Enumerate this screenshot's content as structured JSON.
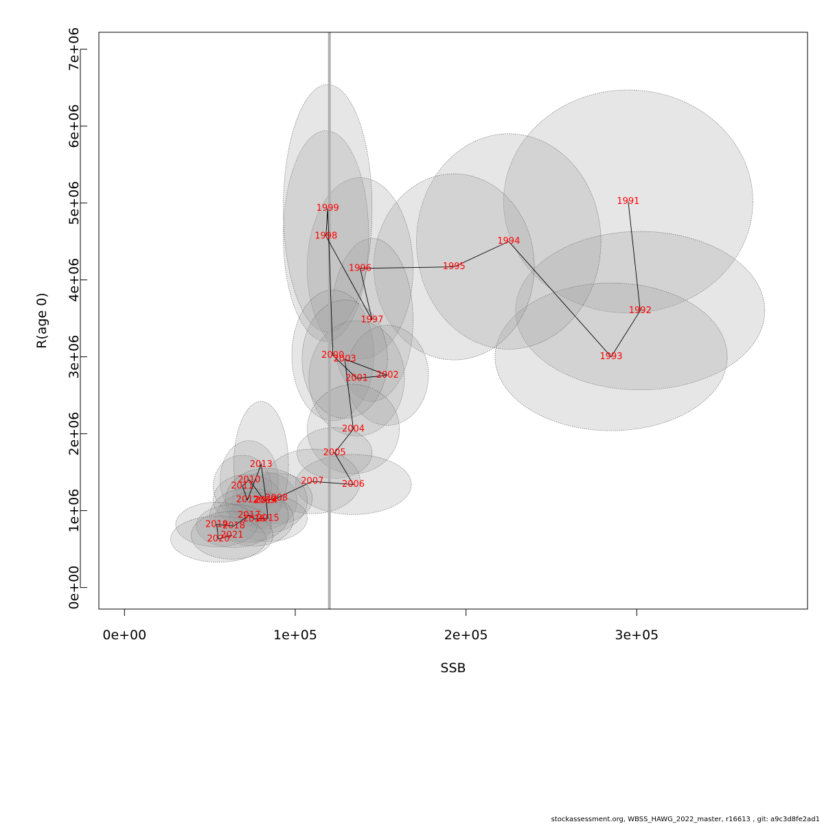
{
  "chart_data": {
    "type": "scatter",
    "xlabel": "SSB",
    "ylabel": "R(age 0)",
    "xlim": [
      -15000,
      400000
    ],
    "ylim": [
      -280000,
      7220000
    ],
    "x_ticks": [
      0,
      100000,
      200000,
      300000
    ],
    "x_tick_labels": [
      "0e+00",
      "1e+05",
      "2e+05",
      "3e+05"
    ],
    "y_ticks": [
      0,
      1000000,
      2000000,
      3000000,
      4000000,
      5000000,
      6000000,
      7000000
    ],
    "y_tick_labels": [
      "0e+00",
      "1e+06",
      "2e+06",
      "3e+06",
      "4e+06",
      "5e+06",
      "6e+06",
      "7e+06"
    ],
    "reference_line": {
      "orientation": "vertical",
      "x": 120000,
      "color": "#b0b0b0"
    },
    "line_color": "#000000",
    "label_color": "#ff0000",
    "ellipse_fill": "#9a9a9a",
    "ellipse_stroke": "#555555",
    "points": [
      {
        "year": "1991",
        "x": 295000,
        "y": 5020000,
        "rx": 73000,
        "ry": 1450000
      },
      {
        "year": "1992",
        "x": 302000,
        "y": 3600000,
        "rx": 73000,
        "ry": 1030000
      },
      {
        "year": "1993",
        "x": 285000,
        "y": 3000000,
        "rx": 68000,
        "ry": 960000
      },
      {
        "year": "1994",
        "x": 225000,
        "y": 4500000,
        "rx": 54000,
        "ry": 1400000
      },
      {
        "year": "1995",
        "x": 193000,
        "y": 4170000,
        "rx": 47000,
        "ry": 1210000
      },
      {
        "year": "1996",
        "x": 138000,
        "y": 4150000,
        "rx": 31000,
        "ry": 1180000
      },
      {
        "year": "1997",
        "x": 145000,
        "y": 3480000,
        "rx": 24000,
        "ry": 1060000
      },
      {
        "year": "1998",
        "x": 118000,
        "y": 4570000,
        "rx": 25000,
        "ry": 1370000
      },
      {
        "year": "1999",
        "x": 119000,
        "y": 4930000,
        "rx": 26000,
        "ry": 1610000
      },
      {
        "year": "2000",
        "x": 122000,
        "y": 3020000,
        "rx": 24000,
        "ry": 850000
      },
      {
        "year": "2001",
        "x": 136000,
        "y": 2720000,
        "rx": 28000,
        "ry": 750000
      },
      {
        "year": "2002",
        "x": 154000,
        "y": 2760000,
        "rx": 24000,
        "ry": 650000
      },
      {
        "year": "2003",
        "x": 129000,
        "y": 2970000,
        "rx": 25000,
        "ry": 770000
      },
      {
        "year": "2004",
        "x": 134000,
        "y": 2060000,
        "rx": 27000,
        "ry": 580000
      },
      {
        "year": "2005",
        "x": 123000,
        "y": 1750000,
        "rx": 22000,
        "ry": 330000
      },
      {
        "year": "2006",
        "x": 134000,
        "y": 1340000,
        "rx": 34000,
        "ry": 390000
      },
      {
        "year": "2007",
        "x": 110000,
        "y": 1380000,
        "rx": 28000,
        "ry": 420000
      },
      {
        "year": "2008",
        "x": 89000,
        "y": 1160000,
        "rx": 21000,
        "ry": 330000
      },
      {
        "year": "2009",
        "x": 82000,
        "y": 1130000,
        "rx": 19000,
        "ry": 370000
      },
      {
        "year": "2010",
        "x": 73000,
        "y": 1400000,
        "rx": 17000,
        "ry": 510000
      },
      {
        "year": "2011",
        "x": 69000,
        "y": 1320000,
        "rx": 17000,
        "ry": 400000
      },
      {
        "year": "2012",
        "x": 72000,
        "y": 1140000,
        "rx": 20000,
        "ry": 330000
      },
      {
        "year": "2013",
        "x": 80000,
        "y": 1600000,
        "rx": 16000,
        "ry": 820000
      },
      {
        "year": "2014",
        "x": 83000,
        "y": 1130000,
        "rx": 24000,
        "ry": 420000
      },
      {
        "year": "2015",
        "x": 84000,
        "y": 900000,
        "rx": 23000,
        "ry": 300000
      },
      {
        "year": "2016",
        "x": 76000,
        "y": 890000,
        "rx": 23000,
        "ry": 350000
      },
      {
        "year": "2017",
        "x": 73000,
        "y": 940000,
        "rx": 23000,
        "ry": 350000
      },
      {
        "year": "2018",
        "x": 64000,
        "y": 800000,
        "rx": 22000,
        "ry": 280000
      },
      {
        "year": "2019",
        "x": 54000,
        "y": 820000,
        "rx": 24000,
        "ry": 290000
      },
      {
        "year": "2020",
        "x": 55000,
        "y": 630000,
        "rx": 28000,
        "ry": 300000
      },
      {
        "year": "2021",
        "x": 63000,
        "y": 680000,
        "rx": 24000,
        "ry": 310000
      }
    ]
  },
  "footer_text": "stockassessment.org, WBSS_HAWG_2022_master, r16613 , git: a9c3d8fe2ad1"
}
